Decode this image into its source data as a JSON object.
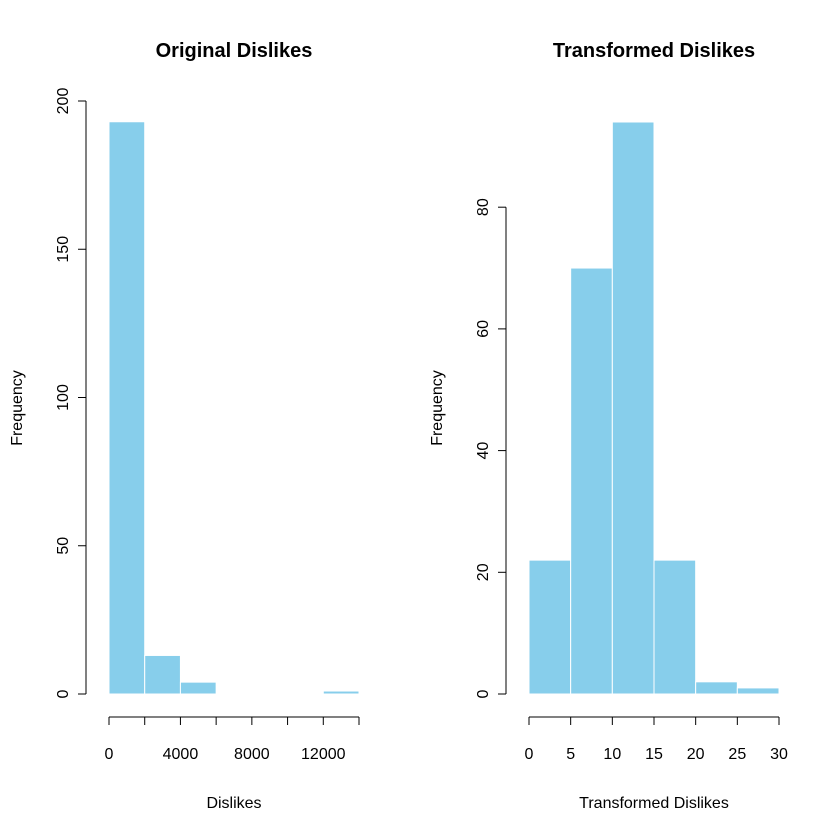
{
  "colors": {
    "bar_fill": "#87CEEB",
    "bar_border": "#FFFFFF",
    "axis": "#000000"
  },
  "chart_data": [
    {
      "type": "bar",
      "title": "Original Dislikes",
      "xlabel": "Dislikes",
      "ylabel": "Frequency",
      "bins": [
        {
          "start": 0,
          "end": 2000,
          "count": 193
        },
        {
          "start": 2000,
          "end": 4000,
          "count": 13
        },
        {
          "start": 4000,
          "end": 6000,
          "count": 4
        },
        {
          "start": 6000,
          "end": 8000,
          "count": 0
        },
        {
          "start": 8000,
          "end": 10000,
          "count": 0
        },
        {
          "start": 10000,
          "end": 12000,
          "count": 0
        },
        {
          "start": 12000,
          "end": 14000,
          "count": 1
        }
      ],
      "xlim": [
        0,
        14000
      ],
      "ylim": [
        0,
        200
      ],
      "x_ticks": [
        0,
        2000,
        4000,
        6000,
        8000,
        10000,
        12000,
        14000
      ],
      "x_tick_labels": [
        "0",
        "",
        "4000",
        "",
        "8000",
        "",
        "12000",
        ""
      ],
      "y_ticks": [
        0,
        50,
        100,
        150,
        200
      ],
      "y_tick_labels": [
        "0",
        "50",
        "100",
        "150",
        "200"
      ]
    },
    {
      "type": "bar",
      "title": "Transformed Dislikes",
      "xlabel": "Transformed Dislikes",
      "ylabel": "Frequency",
      "bins": [
        {
          "start": 0,
          "end": 5,
          "count": 22
        },
        {
          "start": 5,
          "end": 10,
          "count": 70
        },
        {
          "start": 10,
          "end": 15,
          "count": 94
        },
        {
          "start": 15,
          "end": 20,
          "count": 22
        },
        {
          "start": 20,
          "end": 25,
          "count": 2
        },
        {
          "start": 25,
          "end": 30,
          "count": 1
        }
      ],
      "xlim": [
        0,
        30
      ],
      "ylim": [
        0,
        94
      ],
      "x_ticks": [
        0,
        5,
        10,
        15,
        20,
        25,
        30
      ],
      "x_tick_labels": [
        "0",
        "5",
        "10",
        "15",
        "20",
        "25",
        "30"
      ],
      "y_ticks": [
        0,
        20,
        40,
        60,
        80
      ],
      "y_tick_labels": [
        "0",
        "20",
        "40",
        "60",
        "80"
      ]
    }
  ]
}
